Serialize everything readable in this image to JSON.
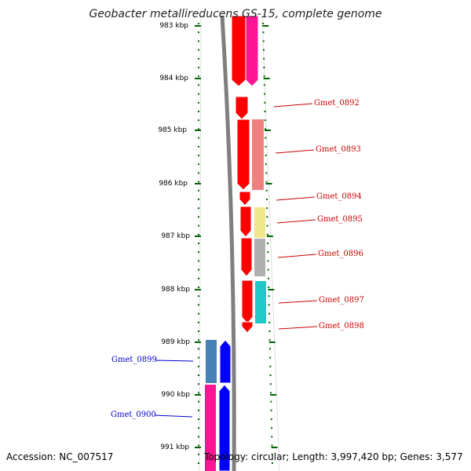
{
  "title": "Geobacter metallireducens GS-15, complete genome",
  "accession": "Accession: NC_007517",
  "topology": "Topology: circular; Length: 3,997,420 bp; Genes: 3,577",
  "ruler": {
    "labels": [
      "983 kbp",
      "984 kbp",
      "985 kbp",
      "986 kbp",
      "987 kbp",
      "988 kbp",
      "989 kbp",
      "990 kbp",
      "991 kbp"
    ],
    "start_kbp": 983,
    "end_kbp": 991
  },
  "colors": {
    "red": "#ff0000",
    "magenta": "#ff1493",
    "salmon": "#f08080",
    "khaki": "#f0e68c",
    "gray": "#b0b0b0",
    "teal": "#20c8c8",
    "steelblue": "#4682b4",
    "blue": "#0000ff",
    "tick": "#006400",
    "label_red": "#cc0000",
    "label_blue": "#0000cc"
  },
  "genes": [
    {
      "id": "Gmet_0892",
      "color_label": "red"
    },
    {
      "id": "Gmet_0893",
      "color_label": "red"
    },
    {
      "id": "Gmet_0894",
      "color_label": "red"
    },
    {
      "id": "Gmet_0895",
      "color_label": "red"
    },
    {
      "id": "Gmet_0896",
      "color_label": "red"
    },
    {
      "id": "Gmet_0897",
      "color_label": "red"
    },
    {
      "id": "Gmet_0898",
      "color_label": "red"
    },
    {
      "id": "Gmet_0899",
      "color_label": "blue"
    },
    {
      "id": "Gmet_0900",
      "color_label": "blue"
    }
  ]
}
